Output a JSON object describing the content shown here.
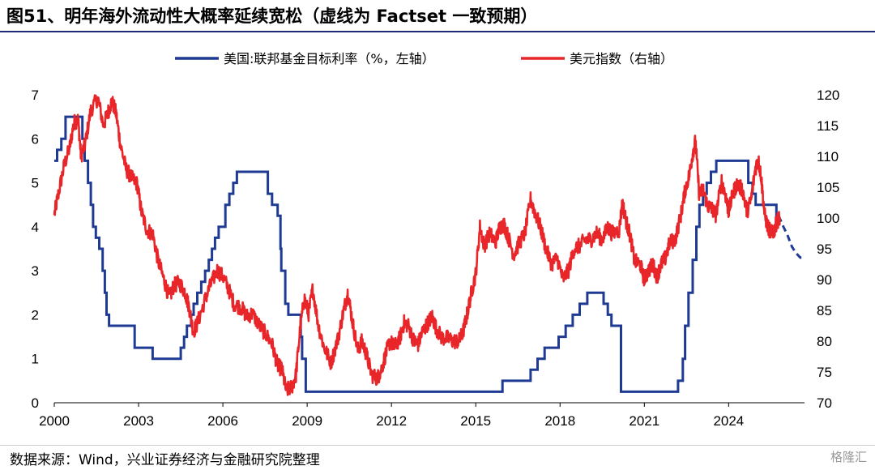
{
  "title": "图51、明年海外流动性大概率延续宽松（虚线为 Factset 一致预期）",
  "source": "数据来源：Wind，兴业证券经济与金融研究院整理",
  "watermark": "格隆汇",
  "colors": {
    "fed": "#1f3a93",
    "dxy": "#e8262a",
    "title_rule": "#1e2a78"
  },
  "chart_data": {
    "type": "line",
    "title": "图51、明年海外流动性大概率延续宽松（虚线为 Factset 一致预期）",
    "xlabel": "",
    "x_ticks": [
      "2000",
      "2003",
      "2006",
      "2009",
      "2012",
      "2015",
      "2018",
      "2021",
      "2024"
    ],
    "xlim": [
      2000,
      2026.7
    ],
    "y_left": {
      "label": "",
      "ylim": [
        0,
        7
      ],
      "ticks": [
        "0",
        "1",
        "2",
        "3",
        "4",
        "5",
        "6",
        "7"
      ]
    },
    "y_right": {
      "label": "",
      "ylim": [
        70,
        120
      ],
      "ticks": [
        "70",
        "75",
        "80",
        "85",
        "90",
        "95",
        "100",
        "105",
        "110",
        "115",
        "120"
      ]
    },
    "legend": {
      "placement": "top-center"
    },
    "series": [
      {
        "name": "美国:联邦基金目标利率（%，左轴）",
        "axis": "left",
        "style": "step",
        "points": [
          [
            2000.0,
            5.5
          ],
          [
            2000.1,
            5.75
          ],
          [
            2000.25,
            6.0
          ],
          [
            2000.4,
            6.5
          ],
          [
            2001.0,
            6.0
          ],
          [
            2001.08,
            5.5
          ],
          [
            2001.2,
            5.0
          ],
          [
            2001.3,
            4.5
          ],
          [
            2001.38,
            4.0
          ],
          [
            2001.48,
            3.75
          ],
          [
            2001.6,
            3.5
          ],
          [
            2001.72,
            3.0
          ],
          [
            2001.8,
            2.5
          ],
          [
            2001.86,
            2.0
          ],
          [
            2001.95,
            1.75
          ],
          [
            2002.86,
            1.25
          ],
          [
            2003.5,
            1.0
          ],
          [
            2004.5,
            1.25
          ],
          [
            2004.62,
            1.5
          ],
          [
            2004.72,
            1.75
          ],
          [
            2004.87,
            2.0
          ],
          [
            2004.96,
            2.25
          ],
          [
            2005.09,
            2.5
          ],
          [
            2005.23,
            2.75
          ],
          [
            2005.37,
            3.0
          ],
          [
            2005.5,
            3.25
          ],
          [
            2005.61,
            3.5
          ],
          [
            2005.72,
            3.75
          ],
          [
            2005.85,
            4.0
          ],
          [
            2006.09,
            4.5
          ],
          [
            2006.23,
            4.75
          ],
          [
            2006.37,
            5.0
          ],
          [
            2006.5,
            5.25
          ],
          [
            2007.6,
            4.75
          ],
          [
            2007.75,
            4.5
          ],
          [
            2007.95,
            4.25
          ],
          [
            2008.05,
            3.5
          ],
          [
            2008.08,
            3.0
          ],
          [
            2008.22,
            2.25
          ],
          [
            2008.33,
            2.0
          ],
          [
            2008.77,
            1.5
          ],
          [
            2008.82,
            1.0
          ],
          [
            2008.95,
            0.25
          ],
          [
            2015.95,
            0.5
          ],
          [
            2016.95,
            0.75
          ],
          [
            2017.2,
            1.0
          ],
          [
            2017.45,
            1.25
          ],
          [
            2017.95,
            1.5
          ],
          [
            2018.2,
            1.75
          ],
          [
            2018.45,
            2.0
          ],
          [
            2018.7,
            2.25
          ],
          [
            2018.97,
            2.5
          ],
          [
            2019.55,
            2.25
          ],
          [
            2019.7,
            2.0
          ],
          [
            2019.83,
            1.75
          ],
          [
            2020.17,
            0.25
          ],
          [
            2022.2,
            0.5
          ],
          [
            2022.37,
            1.0
          ],
          [
            2022.45,
            1.75
          ],
          [
            2022.57,
            2.5
          ],
          [
            2022.72,
            3.25
          ],
          [
            2022.85,
            4.0
          ],
          [
            2022.96,
            4.5
          ],
          [
            2023.09,
            4.75
          ],
          [
            2023.22,
            5.0
          ],
          [
            2023.37,
            5.25
          ],
          [
            2023.56,
            5.5
          ],
          [
            2024.7,
            5.0
          ],
          [
            2024.85,
            4.75
          ],
          [
            2024.96,
            4.5
          ],
          [
            2025.7,
            4.25
          ],
          [
            2025.78,
            4.25
          ]
        ]
      },
      {
        "name": "美国:联邦基金目标利率（%，左轴）",
        "axis": "left",
        "style": "dashed",
        "points": [
          [
            2025.78,
            4.25
          ],
          [
            2025.95,
            4.0
          ],
          [
            2026.1,
            3.8
          ],
          [
            2026.25,
            3.55
          ],
          [
            2026.4,
            3.4
          ],
          [
            2026.55,
            3.3
          ],
          [
            2026.7,
            3.3
          ]
        ]
      },
      {
        "name": "美元指数（右轴）",
        "axis": "right",
        "style": "solid",
        "points": [
          [
            2000.0,
            100.5
          ],
          [
            2000.15,
            104.0
          ],
          [
            2000.35,
            108.5
          ],
          [
            2000.55,
            111.5
          ],
          [
            2000.7,
            115.5
          ],
          [
            2000.85,
            116.0
          ],
          [
            2000.95,
            110.0
          ],
          [
            2001.1,
            112.0
          ],
          [
            2001.3,
            117.5
          ],
          [
            2001.55,
            119.5
          ],
          [
            2001.75,
            115.0
          ],
          [
            2001.9,
            117.0
          ],
          [
            2002.05,
            119.0
          ],
          [
            2002.2,
            117.0
          ],
          [
            2002.35,
            112.0
          ],
          [
            2002.55,
            108.0
          ],
          [
            2002.75,
            106.5
          ],
          [
            2002.95,
            105.5
          ],
          [
            2003.1,
            101.0
          ],
          [
            2003.3,
            98.0
          ],
          [
            2003.5,
            97.5
          ],
          [
            2003.7,
            93.0
          ],
          [
            2003.9,
            90.0
          ],
          [
            2004.1,
            87.0
          ],
          [
            2004.25,
            89.0
          ],
          [
            2004.45,
            89.5
          ],
          [
            2004.65,
            88.0
          ],
          [
            2004.8,
            85.5
          ],
          [
            2004.95,
            81.5
          ],
          [
            2005.1,
            83.0
          ],
          [
            2005.35,
            86.5
          ],
          [
            2005.55,
            89.0
          ],
          [
            2005.8,
            91.5
          ],
          [
            2006.0,
            90.5
          ],
          [
            2006.2,
            88.5
          ],
          [
            2006.4,
            86.0
          ],
          [
            2006.65,
            85.5
          ],
          [
            2006.85,
            84.0
          ],
          [
            2007.05,
            84.5
          ],
          [
            2007.3,
            82.5
          ],
          [
            2007.55,
            81.0
          ],
          [
            2007.75,
            79.5
          ],
          [
            2007.95,
            76.0
          ],
          [
            2008.1,
            75.5
          ],
          [
            2008.25,
            72.0
          ],
          [
            2008.45,
            72.5
          ],
          [
            2008.6,
            74.5
          ],
          [
            2008.75,
            82.0
          ],
          [
            2008.9,
            87.0
          ],
          [
            2009.05,
            84.5
          ],
          [
            2009.2,
            88.5
          ],
          [
            2009.4,
            82.5
          ],
          [
            2009.6,
            79.0
          ],
          [
            2009.85,
            76.5
          ],
          [
            2010.1,
            80.5
          ],
          [
            2010.3,
            85.0
          ],
          [
            2010.45,
            88.0
          ],
          [
            2010.6,
            83.5
          ],
          [
            2010.8,
            78.5
          ],
          [
            2010.95,
            80.0
          ],
          [
            2011.1,
            78.0
          ],
          [
            2011.3,
            74.5
          ],
          [
            2011.5,
            74.0
          ],
          [
            2011.65,
            75.5
          ],
          [
            2011.8,
            78.0
          ],
          [
            2011.95,
            80.0
          ],
          [
            2012.1,
            79.0
          ],
          [
            2012.3,
            80.5
          ],
          [
            2012.45,
            83.0
          ],
          [
            2012.6,
            82.5
          ],
          [
            2012.8,
            80.0
          ],
          [
            2012.95,
            79.5
          ],
          [
            2013.1,
            81.5
          ],
          [
            2013.3,
            83.0
          ],
          [
            2013.45,
            84.0
          ],
          [
            2013.6,
            82.0
          ],
          [
            2013.8,
            80.5
          ],
          [
            2014.0,
            80.5
          ],
          [
            2014.2,
            80.0
          ],
          [
            2014.4,
            80.0
          ],
          [
            2014.55,
            81.5
          ],
          [
            2014.7,
            84.5
          ],
          [
            2014.85,
            88.0
          ],
          [
            2015.0,
            91.0
          ],
          [
            2015.15,
            98.5
          ],
          [
            2015.3,
            95.5
          ],
          [
            2015.5,
            97.5
          ],
          [
            2015.7,
            96.0
          ],
          [
            2015.85,
            98.5
          ],
          [
            2016.0,
            99.0
          ],
          [
            2016.15,
            97.0
          ],
          [
            2016.35,
            94.0
          ],
          [
            2016.55,
            96.0
          ],
          [
            2016.75,
            97.5
          ],
          [
            2016.95,
            103.0
          ],
          [
            2017.1,
            101.0
          ],
          [
            2017.3,
            98.5
          ],
          [
            2017.5,
            95.0
          ],
          [
            2017.7,
            92.5
          ],
          [
            2017.9,
            93.5
          ],
          [
            2018.1,
            90.0
          ],
          [
            2018.3,
            91.5
          ],
          [
            2018.5,
            95.0
          ],
          [
            2018.7,
            95.5
          ],
          [
            2018.9,
            96.5
          ],
          [
            2019.1,
            96.5
          ],
          [
            2019.3,
            97.5
          ],
          [
            2019.5,
            96.5
          ],
          [
            2019.7,
            98.5
          ],
          [
            2019.85,
            97.5
          ],
          [
            2020.1,
            98.0
          ],
          [
            2020.22,
            102.5
          ],
          [
            2020.35,
            99.5
          ],
          [
            2020.5,
            97.0
          ],
          [
            2020.65,
            93.0
          ],
          [
            2020.85,
            92.5
          ],
          [
            2021.0,
            90.0
          ],
          [
            2021.15,
            91.5
          ],
          [
            2021.3,
            92.5
          ],
          [
            2021.45,
            90.5
          ],
          [
            2021.6,
            92.5
          ],
          [
            2021.75,
            93.5
          ],
          [
            2021.9,
            96.0
          ],
          [
            2022.1,
            96.5
          ],
          [
            2022.3,
            100.5
          ],
          [
            2022.45,
            104.5
          ],
          [
            2022.6,
            107.0
          ],
          [
            2022.72,
            110.5
          ],
          [
            2022.82,
            112.5
          ],
          [
            2022.95,
            104.0
          ],
          [
            2023.1,
            104.5
          ],
          [
            2023.25,
            102.0
          ],
          [
            2023.4,
            101.5
          ],
          [
            2023.55,
            100.5
          ],
          [
            2023.75,
            106.0
          ],
          [
            2023.9,
            103.5
          ],
          [
            2024.0,
            101.0
          ],
          [
            2024.15,
            104.0
          ],
          [
            2024.3,
            105.5
          ],
          [
            2024.5,
            104.5
          ],
          [
            2024.65,
            101.0
          ],
          [
            2024.8,
            103.0
          ],
          [
            2024.95,
            108.0
          ],
          [
            2025.05,
            109.5
          ],
          [
            2025.15,
            107.0
          ],
          [
            2025.28,
            100.5
          ],
          [
            2025.4,
            98.5
          ],
          [
            2025.52,
            97.5
          ],
          [
            2025.62,
            98.0
          ],
          [
            2025.72,
            99.5
          ],
          [
            2025.82,
            100.0
          ]
        ]
      }
    ]
  }
}
